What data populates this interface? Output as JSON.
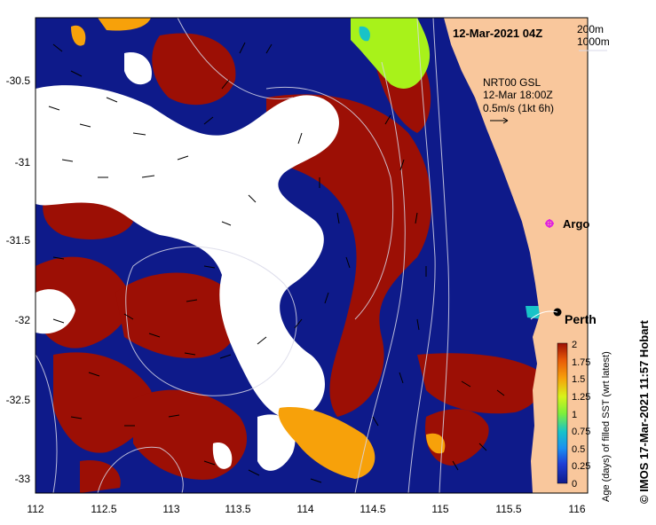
{
  "header": {
    "datetime": "12-Mar-2021 04Z"
  },
  "legend_isobaths": {
    "line1": "200m",
    "line2": "1000m"
  },
  "currents": {
    "source": "NRT00 GSL",
    "time": "12-Mar 18:00Z",
    "scale": "0.5m/s (1kt 6h)"
  },
  "places": {
    "argo": "Argo",
    "perth": "Perth"
  },
  "axes": {
    "x_ticks": [
      "112",
      "112.5",
      "113",
      "113.5",
      "114",
      "114.5",
      "115",
      "115.5",
      "116"
    ],
    "y_ticks": [
      "-30.5",
      "-31",
      "-31.5",
      "-32",
      "-32.5",
      "-33"
    ]
  },
  "colorbar": {
    "label": "Age (days) of filled SST (wrt latest)",
    "ticks": [
      "2",
      "1.75",
      "1.5",
      "1.25",
      "1",
      "0.75",
      "0.5",
      "0.25",
      "0"
    ]
  },
  "credit": "© IMOS 17-Mar-2021 11:57 Hobart",
  "colors": {
    "land": "#f9c79c",
    "navy": "#0e1a8a",
    "dark_red": "#9c0f05",
    "orange": "#f7a10a",
    "lime": "#a8f21a",
    "missing": "#ffffff"
  }
}
